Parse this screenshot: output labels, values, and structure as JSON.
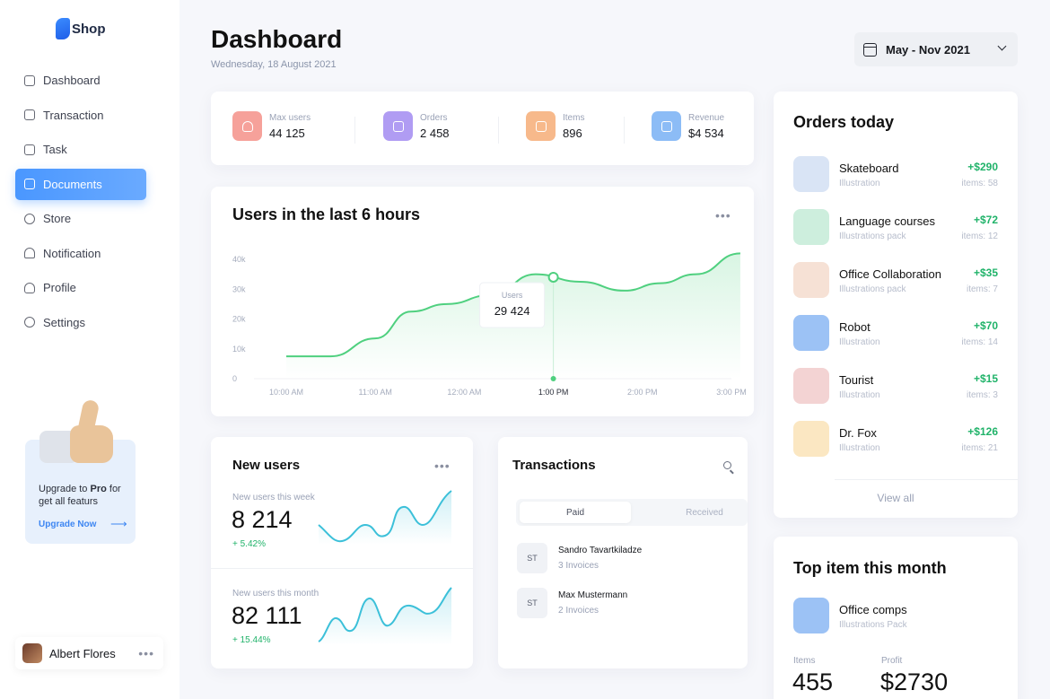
{
  "app": {
    "name": "Shop"
  },
  "sidebar": {
    "items": [
      {
        "label": "Dashboard",
        "active": false
      },
      {
        "label": "Transaction",
        "active": false
      },
      {
        "label": "Task",
        "active": false
      },
      {
        "label": "Documents",
        "active": true
      },
      {
        "label": "Store",
        "active": false
      },
      {
        "label": "Notification",
        "active": false
      },
      {
        "label": "Profile",
        "active": false
      },
      {
        "label": "Settings",
        "active": false
      }
    ],
    "upgrade": {
      "text_pre": "Upgrade to ",
      "text_bold": "Pro",
      "text_post": " for get all featurs",
      "link": "Upgrade Now"
    },
    "user": {
      "name": "Albert Flores"
    }
  },
  "header": {
    "title": "Dashboard",
    "date": "Wednesday, 18 August 2021",
    "range": "May - Nov 2021"
  },
  "stats": [
    {
      "label": "Max users",
      "value": "44 125",
      "color": "#f6a19a"
    },
    {
      "label": "Orders",
      "value": "2 458",
      "color": "#b09cf3"
    },
    {
      "label": "Items",
      "value": "896",
      "color": "#f7b98b"
    },
    {
      "label": "Revenue",
      "value": "$4 534",
      "color": "#8cbcf6"
    }
  ],
  "users_chart": {
    "title": "Users in the last 6 hours",
    "tooltip": {
      "label": "Users",
      "value": "29 424"
    },
    "chart_data": {
      "type": "area",
      "x_ticks": [
        "10:00 AM",
        "11:00 AM",
        "12:00 AM",
        "1:00 PM",
        "2:00 PM",
        "3:00 PM"
      ],
      "y_ticks": [
        "0",
        "10k",
        "20k",
        "30k",
        "40k"
      ],
      "ylim": [
        0,
        40000
      ],
      "highlighted_x": "1:00 PM",
      "x": [
        0,
        0.5,
        1,
        1.4,
        1.8,
        2.3,
        2.8,
        3.3,
        3.8,
        4.2,
        4.6,
        5.1
      ],
      "y": [
        7500,
        7500,
        13500,
        22500,
        25000,
        28000,
        35000,
        32500,
        29500,
        32000,
        35000,
        42000
      ]
    }
  },
  "new_users": {
    "title": "New users",
    "week": {
      "label": "New users this week",
      "value": "8 214",
      "change": "+ 5.42%"
    },
    "month": {
      "label": "New users this month",
      "value": "82 111",
      "change": "+ 15.44%"
    }
  },
  "transactions": {
    "title": "Transactions",
    "tabs": [
      "Paid",
      "Received"
    ],
    "rows": [
      {
        "initials": "ST",
        "name": "Sandro Tavartkiladze",
        "sub": "3 Invoices"
      },
      {
        "initials": "ST",
        "name": "Max Mustermann",
        "sub": "2 Invoices"
      }
    ]
  },
  "orders_today": {
    "title": "Orders today",
    "items": [
      {
        "name": "Skateboard",
        "sub": "Illustration",
        "price": "+$290",
        "count": "items: 58",
        "color": "#d9e4f5"
      },
      {
        "name": "Language courses",
        "sub": "Illustrations pack",
        "price": "+$72",
        "count": "items: 12",
        "color": "#cdeedd"
      },
      {
        "name": "Office Collaboration",
        "sub": "Illustrations pack",
        "price": "+$35",
        "count": "items: 7",
        "color": "#f6e1d5"
      },
      {
        "name": "Robot",
        "sub": "Illustration",
        "price": "+$70",
        "count": "items: 14",
        "color": "#9cc2f5"
      },
      {
        "name": "Tourist",
        "sub": "Illustration",
        "price": "+$15",
        "count": "items: 3",
        "color": "#f3d3d3"
      },
      {
        "name": "Dr. Fox",
        "sub": "Illustration",
        "price": "+$126",
        "count": "items: 21",
        "color": "#fbe7c2"
      }
    ],
    "view_all": "View all"
  },
  "top_item": {
    "title": "Top item this month",
    "name": "Office comps",
    "sub": "Illustrations Pack",
    "items_label": "Items",
    "items_value": "455",
    "profit_label": "Profit",
    "profit_value": "$2730",
    "color": "#9cc2f5"
  },
  "colors": {
    "accent": "#4a97ff",
    "positive": "#21b36a",
    "chart_line": "#4fd07f",
    "mini_line": "#3cc0d9"
  }
}
